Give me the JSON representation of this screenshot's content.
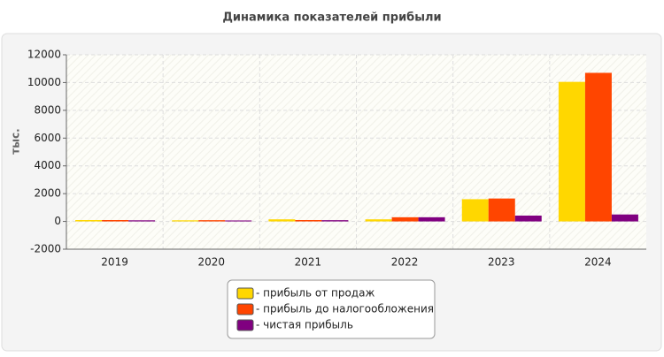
{
  "chart_data": {
    "type": "bar",
    "title": "Динамика показателей прибыли",
    "y_label": "тыс.",
    "categories": [
      "2019",
      "2020",
      "2021",
      "2022",
      "2023",
      "2024"
    ],
    "series": [
      {
        "name": "- прибыль от продаж",
        "color": "#ffd700",
        "values": [
          100,
          80,
          150,
          150,
          1600,
          10050
        ]
      },
      {
        "name": "- прибыль до налогообложения",
        "color": "#ff4500",
        "values": [
          100,
          90,
          100,
          300,
          1650,
          10700
        ]
      },
      {
        "name": "- чистая прибыль",
        "color": "#800080",
        "values": [
          80,
          70,
          90,
          300,
          420,
          500
        ]
      }
    ],
    "ylim": [
      -2000,
      12000
    ],
    "yticks": [
      -2000,
      0,
      2000,
      4000,
      6000,
      8000,
      10000,
      12000
    ],
    "grid": true
  }
}
